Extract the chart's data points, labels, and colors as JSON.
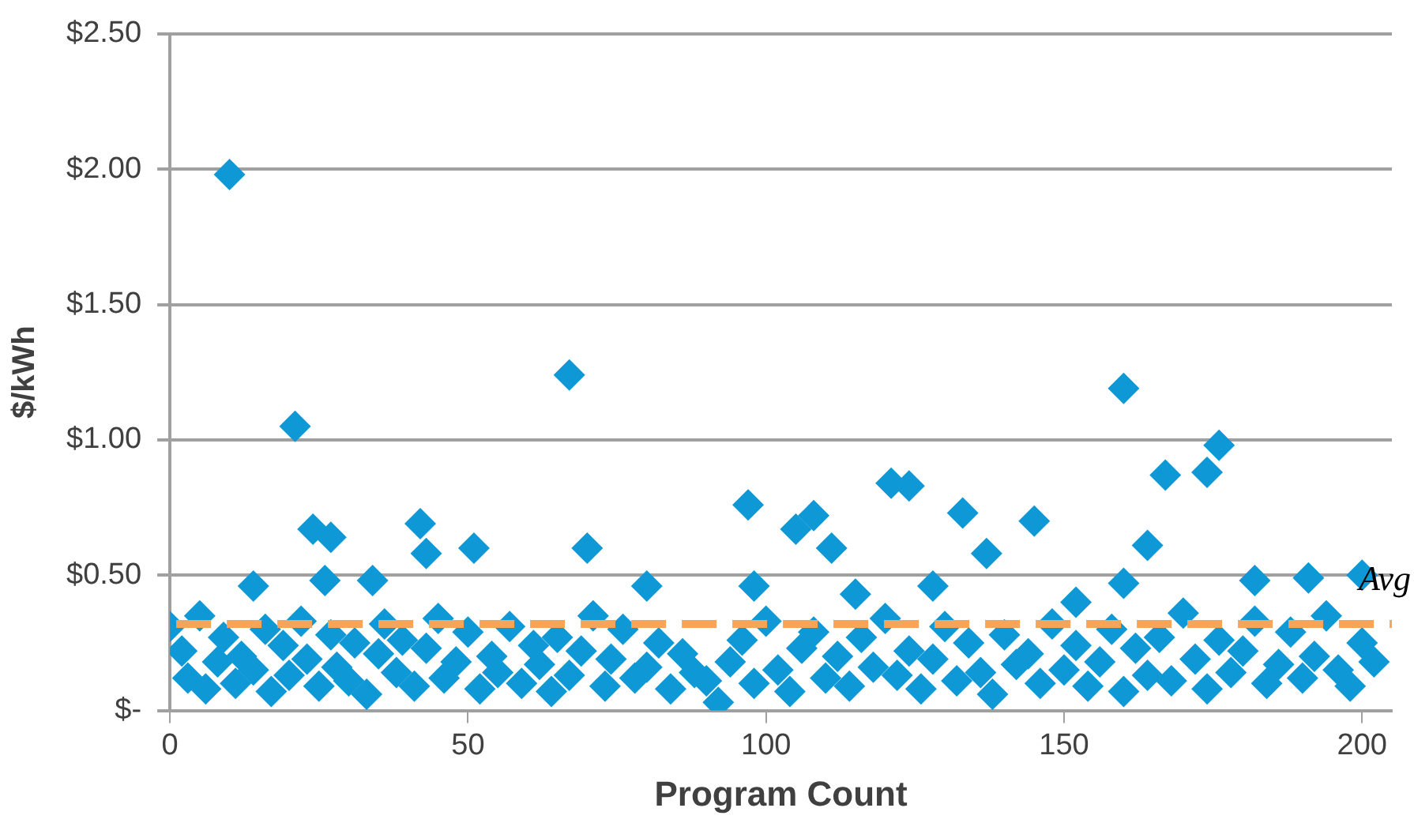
{
  "chart_data": {
    "type": "scatter",
    "xlabel": "Program Count",
    "ylabel": "$/kWh",
    "x": [
      0,
      2,
      3,
      5,
      6,
      8,
      9,
      11,
      12,
      14,
      16,
      17,
      19,
      20,
      22,
      23,
      25,
      27,
      28,
      30,
      31,
      33,
      35,
      36,
      38,
      39,
      41,
      43,
      45,
      46,
      48,
      50,
      52,
      54,
      55,
      57,
      59,
      61,
      62,
      64,
      65,
      67,
      69,
      71,
      73,
      74,
      76,
      78,
      80,
      82,
      84,
      86,
      88,
      90,
      92,
      94,
      96,
      98,
      100,
      102,
      104,
      106,
      108,
      110,
      112,
      114,
      116,
      118,
      120,
      122,
      124,
      126,
      128,
      130,
      132,
      134,
      136,
      138,
      140,
      142,
      144,
      146,
      148,
      150,
      152,
      154,
      156,
      158,
      160,
      162,
      164,
      166,
      168,
      170,
      172,
      174,
      176,
      178,
      180,
      182,
      184,
      186,
      188,
      190,
      192,
      194,
      196,
      198,
      200,
      202,
      10,
      21,
      67,
      24,
      27,
      26,
      14,
      34,
      42,
      43,
      51,
      70,
      80,
      97,
      98,
      105,
      108,
      111,
      115,
      121,
      124,
      128,
      133,
      137,
      145,
      152,
      160,
      160,
      164,
      167,
      174,
      176,
      182,
      191,
      200
    ],
    "series": [
      {
        "color": "#0e98d6",
        "values": [
          0.31,
          0.22,
          0.12,
          0.35,
          0.08,
          0.18,
          0.27,
          0.1,
          0.2,
          0.15,
          0.3,
          0.07,
          0.24,
          0.13,
          0.33,
          0.19,
          0.09,
          0.28,
          0.16,
          0.11,
          0.25,
          0.06,
          0.21,
          0.32,
          0.14,
          0.26,
          0.09,
          0.23,
          0.34,
          0.12,
          0.18,
          0.29,
          0.08,
          0.2,
          0.14,
          0.31,
          0.1,
          0.24,
          0.17,
          0.07,
          0.27,
          0.13,
          0.22,
          0.35,
          0.09,
          0.19,
          0.3,
          0.12,
          0.16,
          0.25,
          0.08,
          0.21,
          0.14,
          0.11,
          0.03,
          0.18,
          0.26,
          0.1,
          0.33,
          0.15,
          0.07,
          0.23,
          0.29,
          0.12,
          0.2,
          0.09,
          0.27,
          0.16,
          0.34,
          0.13,
          0.22,
          0.08,
          0.19,
          0.31,
          0.11,
          0.25,
          0.14,
          0.06,
          0.28,
          0.17,
          0.21,
          0.1,
          0.32,
          0.15,
          0.24,
          0.09,
          0.18,
          0.3,
          0.07,
          0.23,
          0.13,
          0.27,
          0.11,
          0.36,
          0.19,
          0.08,
          0.26,
          0.14,
          0.22,
          0.33,
          0.1,
          0.17,
          0.29,
          0.12,
          0.2,
          0.35,
          0.15,
          0.09,
          0.25,
          0.18,
          1.98,
          1.05,
          1.24,
          0.67,
          0.64,
          0.48,
          0.46,
          0.48,
          0.69,
          0.58,
          0.6,
          0.6,
          0.46,
          0.76,
          0.46,
          0.67,
          0.72,
          0.6,
          0.43,
          0.84,
          0.83,
          0.46,
          0.73,
          0.58,
          0.7,
          0.4,
          1.19,
          0.47,
          0.61,
          0.87,
          0.88,
          0.98,
          0.48,
          0.49,
          0.5
        ]
      }
    ],
    "xlim": [
      0,
      205
    ],
    "xticks": [
      0,
      50,
      100,
      150,
      200
    ],
    "ylim": [
      0,
      2.5
    ],
    "yticks": [
      {
        "value": 0,
        "label": "$-"
      },
      {
        "value": 0.5,
        "label": "$0.50"
      },
      {
        "value": 1,
        "label": "$1.00"
      },
      {
        "value": 1.5,
        "label": "$1.50"
      },
      {
        "value": 2,
        "label": "$2.00"
      },
      {
        "value": 2.5,
        "label": "$2.50"
      }
    ],
    "ref_lines": [
      {
        "axis": "y",
        "value": 0.32,
        "label": "Avg",
        "color": "#f5a55a",
        "line_style": "dashed"
      }
    ],
    "grid": "y",
    "legend": false,
    "marker": "diamond"
  }
}
